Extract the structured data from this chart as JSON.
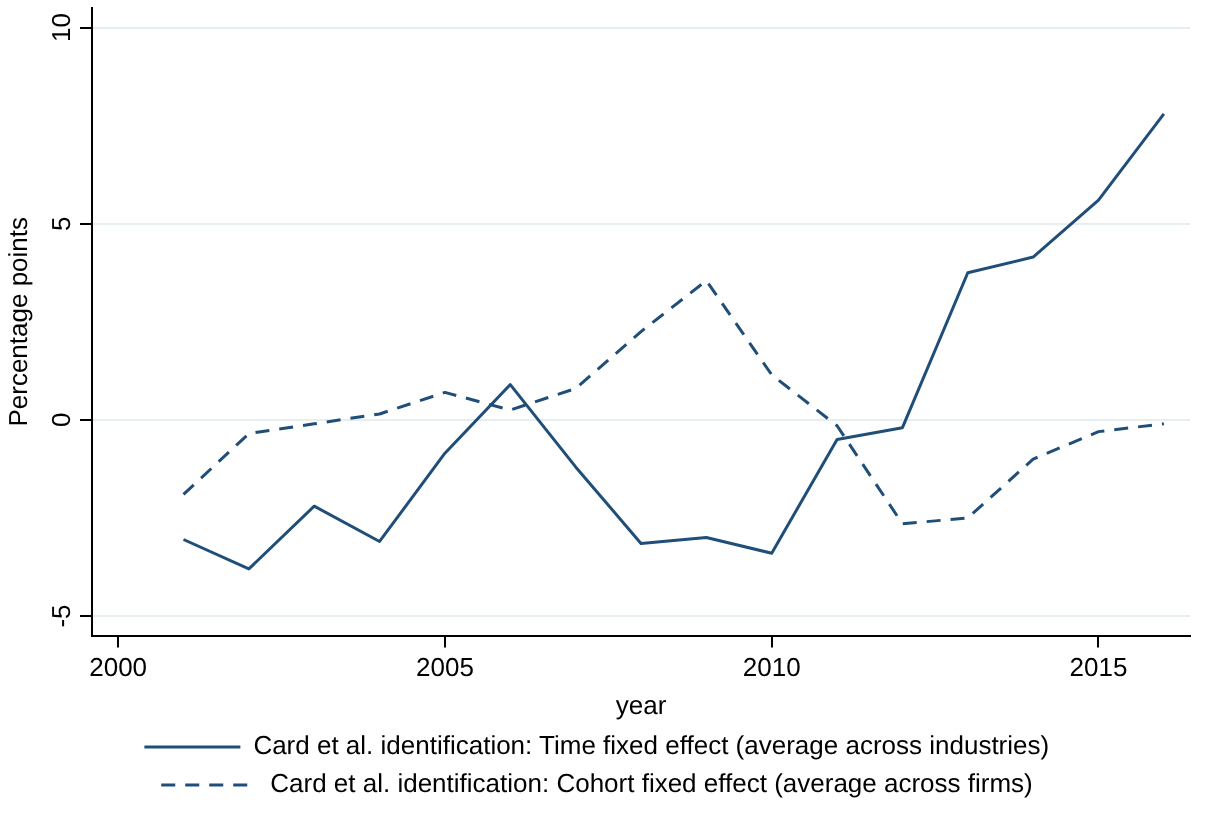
{
  "chart_data": {
    "type": "line",
    "xlabel": "year",
    "ylabel": "Percentage points",
    "x": [
      2001,
      2002,
      2003,
      2004,
      2005,
      2006,
      2007,
      2008,
      2009,
      2010,
      2011,
      2012,
      2013,
      2014,
      2015,
      2016
    ],
    "series": [
      {
        "name": "Card et al. identification: Time fixed effect (average across industries)",
        "color": "#1f4e79",
        "line_style": "solid",
        "values": [
          -3.05,
          -3.8,
          -2.2,
          -3.1,
          -0.85,
          0.9,
          -1.2,
          -3.15,
          -3.0,
          -3.4,
          -0.5,
          -0.2,
          3.75,
          4.15,
          5.6,
          7.8
        ]
      },
      {
        "name": "Card et al. identification: Cohort fixed effect (average across firms)",
        "color": "#1f4e79",
        "line_style": "dashed",
        "values": [
          -1.9,
          -0.35,
          -0.1,
          0.15,
          0.7,
          0.25,
          0.8,
          2.25,
          3.55,
          1.15,
          -0.15,
          -2.65,
          -2.5,
          -1.0,
          -0.3,
          -0.1
        ]
      }
    ],
    "xlim": [
      1999.6,
      2016.4
    ],
    "xticks": [
      2000,
      2005,
      2010,
      2015
    ],
    "ylim": [
      -5.5,
      10.5
    ],
    "yticks": [
      -5,
      0,
      5,
      10
    ],
    "grid": "y",
    "legend": "bottom",
    "marker": "none"
  }
}
